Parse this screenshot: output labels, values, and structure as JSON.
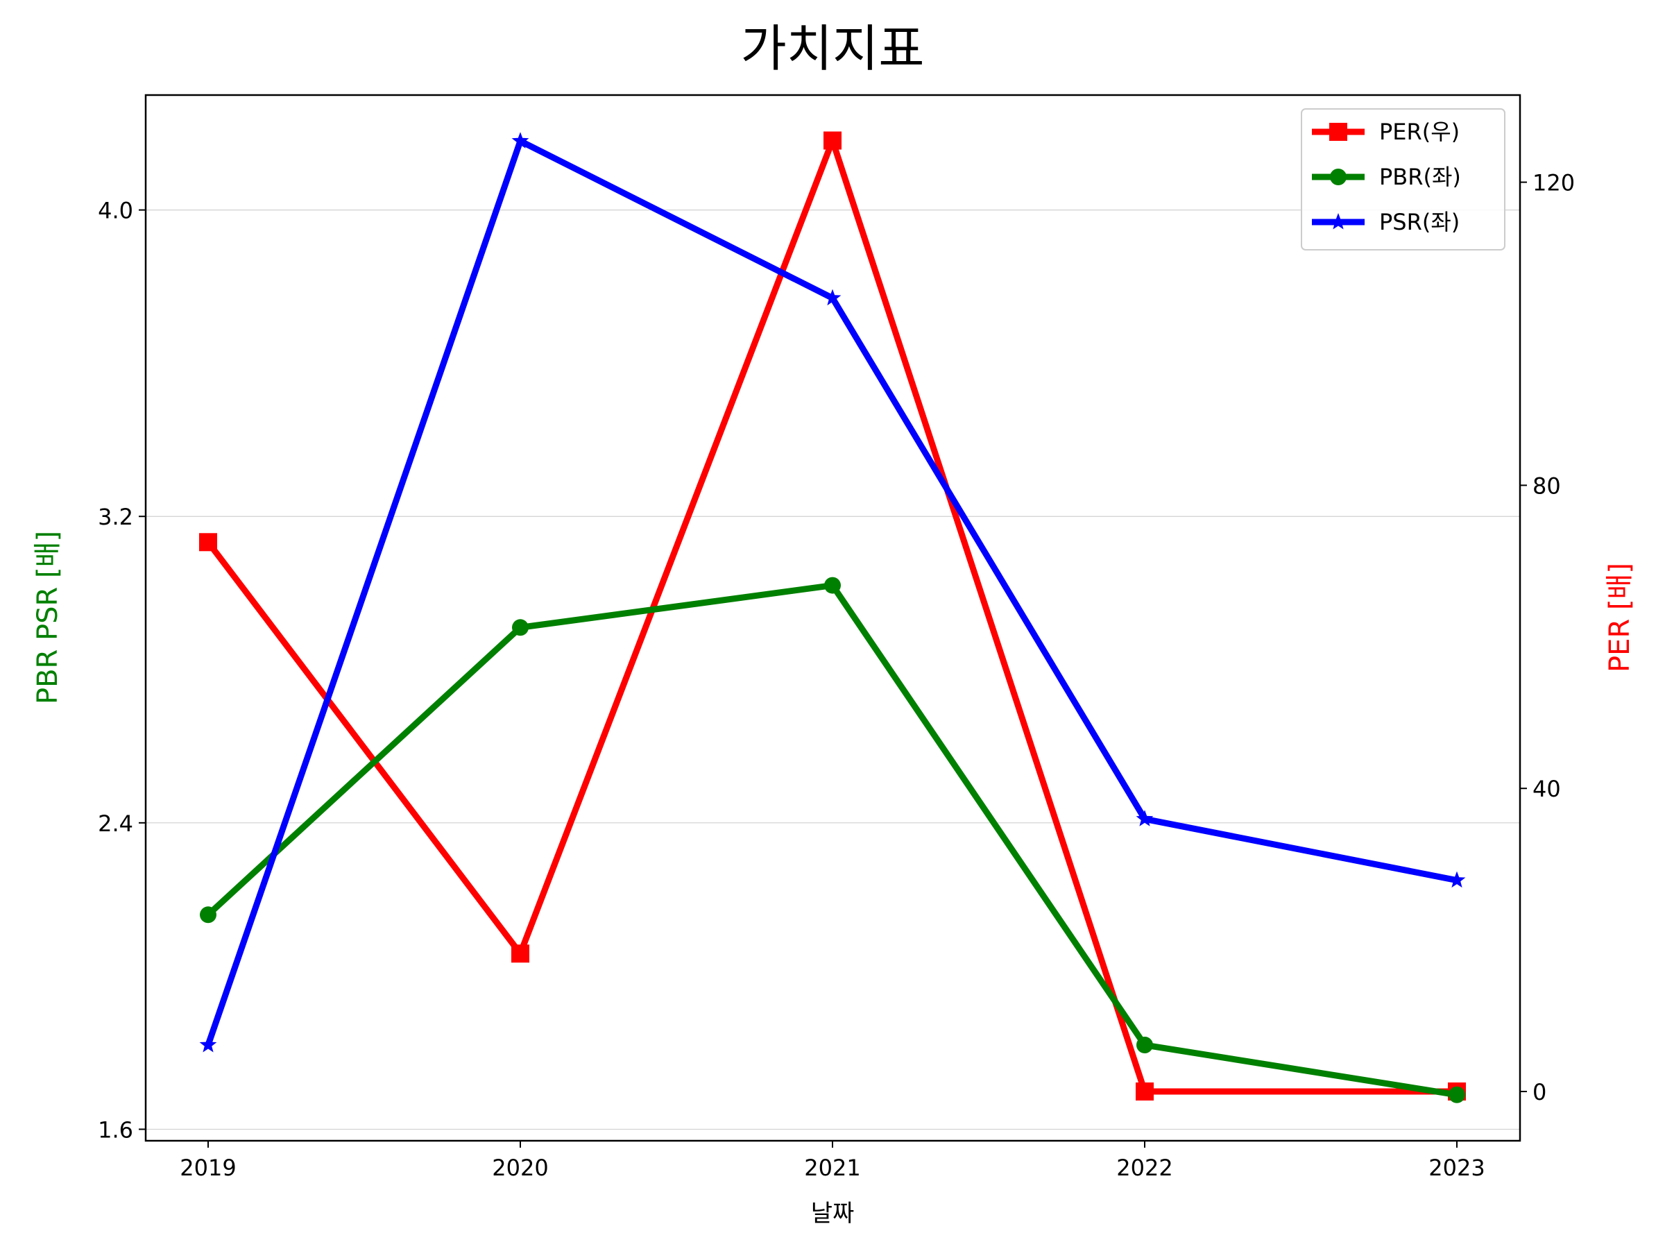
{
  "chart_data": {
    "type": "line",
    "title": "가치지표",
    "xlabel": "날짜",
    "ylabel_left": "PBR PSR [배]",
    "ylabel_right": "PER [배]",
    "categories": [
      "2019",
      "2020",
      "2021",
      "2022",
      "2023"
    ],
    "y_left": {
      "lim": [
        1.57,
        4.3
      ],
      "ticks": [
        1.6,
        2.4,
        3.2,
        4.0
      ],
      "tick_labels": [
        "1.6",
        "2.4",
        "3.2",
        "4.0"
      ]
    },
    "y_right": {
      "lim": [
        -6.5,
        131.5
      ],
      "ticks": [
        0,
        40,
        80,
        120
      ],
      "tick_labels": [
        "0",
        "40",
        "80",
        "120"
      ]
    },
    "grid": true,
    "legend_position": "top-right",
    "series": [
      {
        "name": "PER(우)",
        "axis": "right",
        "color": "#ff0000",
        "marker": "square",
        "values": [
          72.5,
          18.2,
          125.5,
          0.0,
          0.0
        ]
      },
      {
        "name": "PBR(좌)",
        "axis": "left",
        "color": "#008000",
        "marker": "circle",
        "values": [
          2.16,
          2.91,
          3.02,
          1.82,
          1.69
        ]
      },
      {
        "name": "PSR(좌)",
        "axis": "left",
        "color": "#0000ff",
        "marker": "star",
        "values": [
          1.82,
          4.18,
          3.77,
          2.41,
          2.25
        ]
      }
    ]
  }
}
